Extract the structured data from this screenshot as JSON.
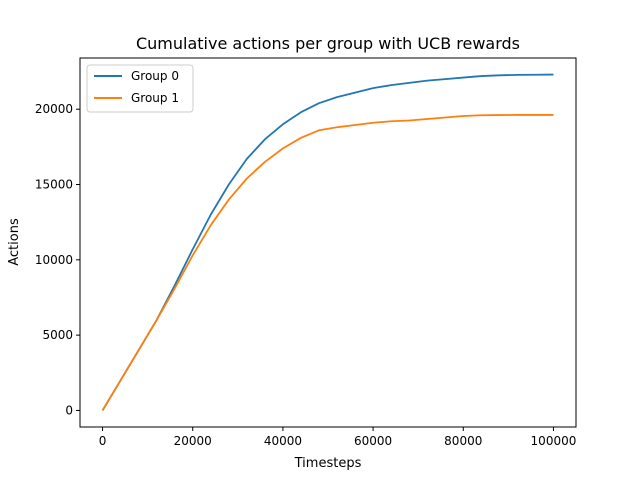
{
  "chart_data": {
    "type": "line",
    "title": "Cumulative actions per group with UCB rewards",
    "xlabel": "Timesteps",
    "ylabel": "Actions",
    "xlim": [
      -5000,
      105000
    ],
    "ylim": [
      -1100,
      23400
    ],
    "xticks": [
      0,
      20000,
      40000,
      60000,
      80000,
      100000
    ],
    "yticks": [
      0,
      5000,
      10000,
      15000,
      20000
    ],
    "xtick_labels": [
      "0",
      "20000",
      "40000",
      "60000",
      "80000",
      "100000"
    ],
    "ytick_labels": [
      "0",
      "5000",
      "10000",
      "15000",
      "20000"
    ],
    "grid": false,
    "legend_position": "top-left",
    "x": [
      0,
      4000,
      8000,
      12000,
      16000,
      20000,
      24000,
      28000,
      32000,
      36000,
      40000,
      44000,
      48000,
      52000,
      56000,
      60000,
      64000,
      68000,
      72000,
      76000,
      80000,
      84000,
      88000,
      92000,
      96000,
      100000
    ],
    "series": [
      {
        "name": "Group 0",
        "color": "#1f77b4",
        "values": [
          0,
          2000,
          4000,
          6000,
          8300,
          10700,
          13000,
          15000,
          16700,
          18000,
          19000,
          19800,
          20400,
          20800,
          21100,
          21400,
          21600,
          21750,
          21900,
          22000,
          22100,
          22200,
          22250,
          22280,
          22290,
          22300
        ]
      },
      {
        "name": "Group 1",
        "color": "#ff7f0e",
        "values": [
          0,
          2000,
          4000,
          6000,
          8100,
          10300,
          12300,
          14000,
          15400,
          16500,
          17400,
          18100,
          18600,
          18800,
          18950,
          19100,
          19200,
          19250,
          19350,
          19450,
          19550,
          19600,
          19610,
          19620,
          19620,
          19620
        ]
      }
    ]
  }
}
